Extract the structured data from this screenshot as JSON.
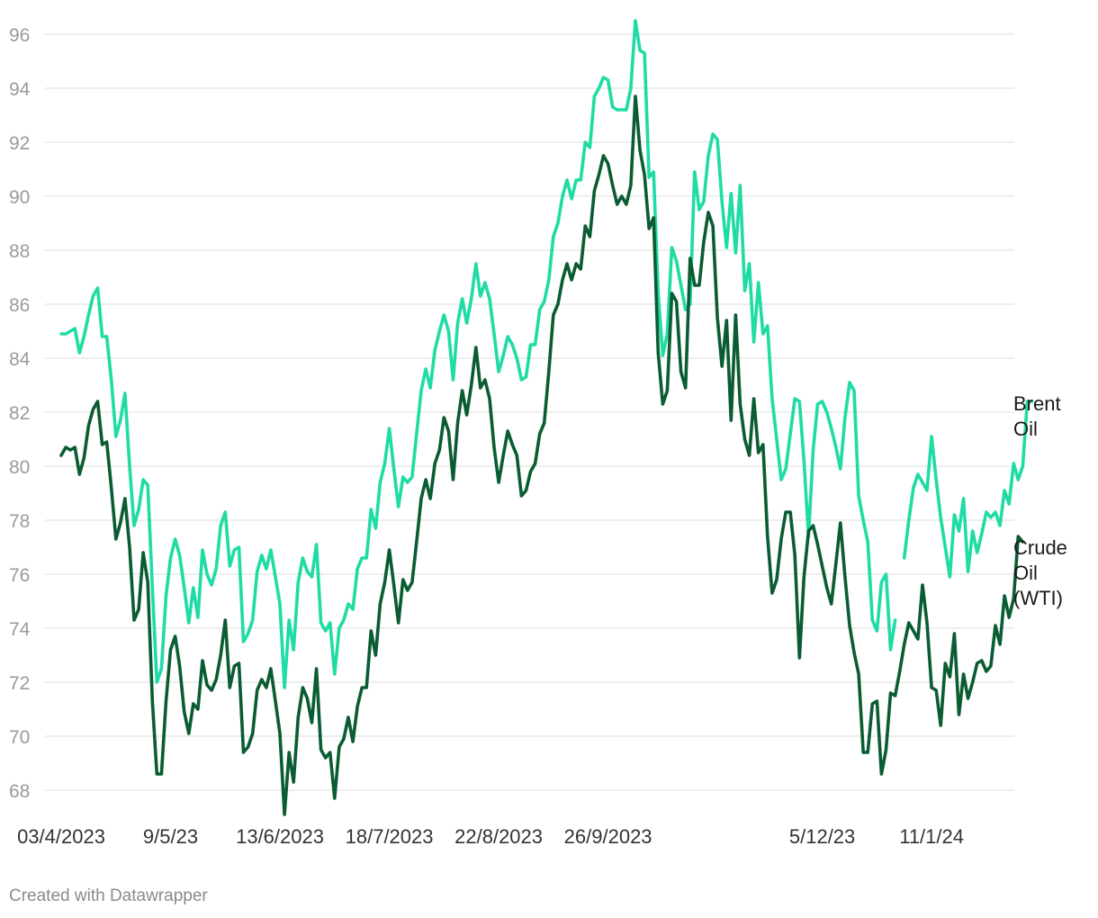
{
  "chart_data": {
    "type": "line",
    "title": "",
    "xlabel": "",
    "ylabel": "",
    "ylim": [
      67.5,
      96.5
    ],
    "y_ticks": [
      68,
      70,
      72,
      74,
      76,
      78,
      80,
      82,
      84,
      86,
      88,
      90,
      92,
      94,
      96
    ],
    "x_tick_labels": [
      "03/4/2023",
      "9/5/23",
      "13/6/2023",
      "18/7/2023",
      "22/8/2023",
      "26/9/2023",
      "5/12/23",
      "11/1/24"
    ],
    "x_tick_index": [
      0,
      24,
      48,
      72,
      96,
      120,
      167,
      191
    ],
    "x_index_range": [
      0,
      205
    ],
    "grid": true,
    "legend": "inline labels at right end of each line",
    "series": [
      {
        "name": "Brent Oil",
        "label_lines": [
          "Brent",
          "Oil"
        ],
        "color": "#1fdba4",
        "values": [
          84.9,
          84.9,
          85.0,
          85.1,
          84.2,
          84.8,
          85.6,
          86.3,
          86.6,
          84.8,
          84.8,
          83.2,
          81.1,
          81.7,
          82.7,
          80.0,
          77.8,
          78.4,
          79.5,
          79.3,
          75.5,
          72.0,
          72.5,
          75.2,
          76.6,
          77.3,
          76.7,
          75.5,
          74.2,
          75.5,
          74.4,
          76.9,
          76.0,
          75.6,
          76.2,
          77.8,
          78.3,
          76.3,
          76.9,
          77.0,
          73.5,
          73.8,
          74.3,
          76.1,
          76.7,
          76.2,
          76.9,
          75.9,
          74.9,
          71.8,
          74.3,
          73.2,
          75.7,
          76.6,
          76.1,
          75.9,
          77.1,
          74.2,
          73.9,
          74.2,
          72.3,
          74.0,
          74.3,
          74.9,
          74.7,
          76.2,
          76.6,
          76.6,
          78.4,
          77.7,
          79.4,
          80.1,
          81.4,
          79.9,
          78.5,
          79.6,
          79.4,
          79.6,
          81.2,
          82.8,
          83.6,
          82.9,
          84.3,
          85.0,
          85.6,
          85.0,
          83.2,
          85.3,
          86.2,
          85.3,
          86.2,
          87.5,
          86.3,
          86.8,
          86.2,
          84.9,
          83.5,
          84.1,
          84.8,
          84.5,
          84.0,
          83.2,
          83.3,
          84.5,
          84.5,
          85.8,
          86.1,
          86.9,
          88.5,
          89.0,
          90.0,
          90.6,
          89.9,
          90.6,
          90.6,
          92.0,
          91.8,
          93.7,
          94.0,
          94.4,
          94.3,
          93.3,
          93.2,
          93.2,
          93.2,
          94.0,
          96.5,
          95.4,
          95.3,
          90.7,
          90.9,
          86.4,
          84.1,
          84.9,
          88.1,
          87.6,
          86.7,
          85.8,
          86.0,
          90.9,
          89.5,
          89.8,
          91.5,
          92.3,
          92.1,
          89.8,
          88.1,
          90.1,
          87.9,
          90.4,
          86.5,
          87.5,
          84.6,
          86.8,
          84.9,
          85.2,
          82.5,
          81.0,
          79.5,
          79.9,
          81.2,
          82.5,
          82.4,
          80.2,
          77.4,
          80.6,
          82.3,
          82.4,
          82.0,
          81.4,
          80.7,
          79.9,
          81.8,
          83.1,
          82.8,
          78.9,
          78.0,
          77.2,
          74.3,
          73.9,
          75.7,
          76.0,
          73.2,
          74.3,
          null,
          76.6,
          78.0,
          79.2,
          79.7,
          79.4,
          79.1,
          81.1,
          79.5,
          78.1,
          77.0,
          75.9,
          78.2,
          77.6,
          78.8,
          76.1,
          77.6,
          76.8,
          77.5,
          78.3,
          78.1,
          78.3,
          77.8,
          79.1,
          78.6,
          80.1,
          79.5,
          80.0,
          82.4,
          82.4
        ]
      },
      {
        "name": "Crude Oil (WTI)",
        "label_lines": [
          "Crude",
          "Oil",
          "(WTI)"
        ],
        "color": "#0a5c32",
        "values": [
          80.4,
          80.7,
          80.6,
          80.7,
          79.7,
          80.3,
          81.5,
          82.1,
          82.4,
          80.8,
          80.9,
          79.2,
          77.3,
          77.9,
          78.8,
          77.0,
          74.3,
          74.7,
          76.8,
          75.7,
          71.3,
          68.6,
          68.6,
          71.3,
          73.2,
          73.7,
          72.6,
          70.9,
          70.1,
          71.2,
          71.0,
          72.8,
          71.9,
          71.7,
          72.1,
          73.0,
          74.3,
          71.8,
          72.6,
          72.7,
          69.4,
          69.6,
          70.1,
          71.7,
          72.1,
          71.8,
          72.5,
          71.3,
          70.1,
          67.1,
          69.4,
          68.3,
          70.7,
          71.8,
          71.4,
          70.5,
          72.5,
          69.5,
          69.2,
          69.4,
          67.7,
          69.6,
          69.9,
          70.7,
          69.8,
          71.1,
          71.8,
          71.8,
          73.9,
          73.0,
          74.9,
          75.7,
          76.9,
          75.6,
          74.2,
          75.8,
          75.4,
          75.7,
          77.2,
          78.8,
          79.5,
          78.8,
          80.1,
          80.6,
          81.8,
          81.3,
          79.5,
          81.6,
          82.8,
          81.9,
          83.0,
          84.4,
          82.9,
          83.2,
          82.5,
          80.7,
          79.4,
          80.4,
          81.3,
          80.8,
          80.4,
          78.9,
          79.1,
          79.8,
          80.1,
          81.2,
          81.6,
          83.5,
          85.6,
          86.0,
          86.9,
          87.5,
          86.9,
          87.5,
          87.3,
          88.9,
          88.5,
          90.2,
          90.8,
          91.5,
          91.2,
          90.4,
          89.7,
          90.0,
          89.7,
          90.4,
          93.7,
          91.7,
          90.8,
          88.8,
          89.2,
          84.2,
          82.3,
          82.8,
          86.4,
          86.1,
          83.5,
          82.9,
          87.7,
          86.7,
          86.7,
          88.3,
          89.4,
          88.9,
          85.5,
          83.7,
          85.4,
          81.7,
          85.6,
          82.3,
          81.0,
          80.4,
          82.5,
          80.5,
          80.8,
          77.4,
          75.3,
          75.8,
          77.3,
          78.3,
          78.3,
          76.7,
          72.9,
          75.9,
          77.6,
          77.8,
          77.1,
          76.3,
          75.5,
          74.9,
          76.4,
          77.9,
          75.9,
          74.1,
          73.1,
          72.3,
          69.4,
          69.4,
          71.2,
          71.3,
          68.6,
          69.5,
          71.6,
          71.5,
          72.4,
          73.4,
          74.2,
          73.9,
          73.6,
          75.6,
          74.2,
          71.8,
          71.7,
          70.4,
          72.7,
          72.2,
          73.8,
          70.8,
          72.3,
          71.4,
          72.0,
          72.7,
          72.8,
          72.4,
          72.6,
          74.1,
          73.4,
          75.2,
          74.4,
          75.1,
          77.4,
          77.2
        ]
      }
    ]
  },
  "footer": {
    "credit": "Created with Datawrapper"
  }
}
